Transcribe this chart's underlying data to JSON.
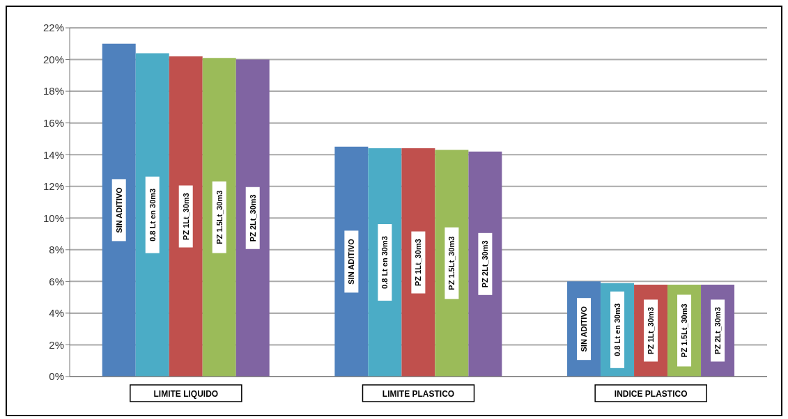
{
  "chart_data": {
    "type": "bar",
    "categories": [
      "LIMITE LIQUIDO",
      "LIMITE PLASTICO",
      "INDICE PLASTICO"
    ],
    "series": [
      {
        "name": "SIN ADITIVO",
        "color": "#4f81bd",
        "values": [
          21.0,
          14.5,
          6.0
        ]
      },
      {
        "name": "0.8 Lt en 30m3",
        "color": "#4bacc6",
        "values": [
          20.4,
          14.4,
          5.9
        ]
      },
      {
        "name": "PZ 1Lt_30m3",
        "color": "#c0504d",
        "values": [
          20.2,
          14.4,
          5.8
        ]
      },
      {
        "name": "PZ 1.5Lt_30m3",
        "color": "#9bbb59",
        "values": [
          20.1,
          14.3,
          5.8
        ]
      },
      {
        "name": "PZ 2Lt_30m3",
        "color": "#8064a2",
        "values": [
          20.0,
          14.2,
          5.8
        ]
      }
    ],
    "ylim": [
      0,
      22
    ],
    "yticks": [
      {
        "value": 0,
        "label": "0%"
      },
      {
        "value": 2,
        "label": "2%"
      },
      {
        "value": 4,
        "label": "4%"
      },
      {
        "value": 6,
        "label": "6%"
      },
      {
        "value": 8,
        "label": "8%"
      },
      {
        "value": 10,
        "label": "10%"
      },
      {
        "value": 12,
        "label": "12%"
      },
      {
        "value": 14,
        "label": "14%"
      },
      {
        "value": 16,
        "label": "16%"
      },
      {
        "value": 18,
        "label": "18%"
      },
      {
        "value": 20,
        "label": "20%"
      },
      {
        "value": 22,
        "label": "22%"
      }
    ],
    "grid": "y",
    "legend": false
  }
}
